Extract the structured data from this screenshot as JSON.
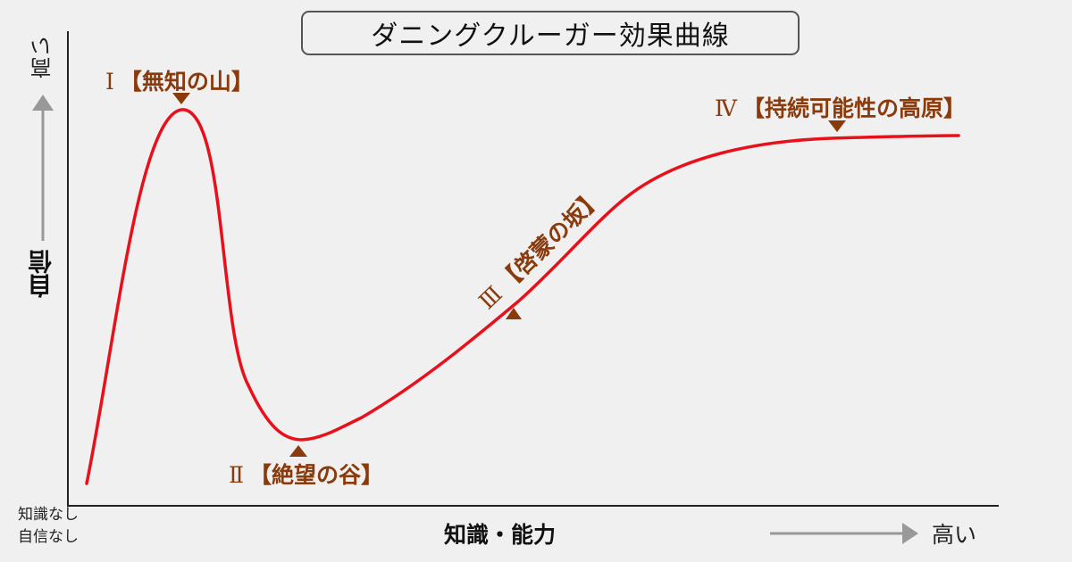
{
  "title": "ダニングクルーガー効果曲線",
  "y_axis": {
    "label": "自信",
    "high_label": "高い"
  },
  "x_axis": {
    "label": "知識・能力",
    "high_label": "高い"
  },
  "origin_labels": [
    "知識なし",
    "自信なし"
  ],
  "stages": [
    {
      "numeral": "Ⅰ",
      "name": "【無知の山】"
    },
    {
      "numeral": "Ⅱ",
      "name": "【絶望の谷】"
    },
    {
      "numeral": "Ⅲ",
      "name": "【啓蒙の坂】"
    },
    {
      "numeral": "Ⅳ",
      "name": "【持続可能性の高原】"
    }
  ],
  "colors": {
    "curve": "#e8101a",
    "label": "#8a3a0b",
    "axis": "#222222",
    "arrow": "#999999",
    "background": "#f0f0f0"
  }
}
